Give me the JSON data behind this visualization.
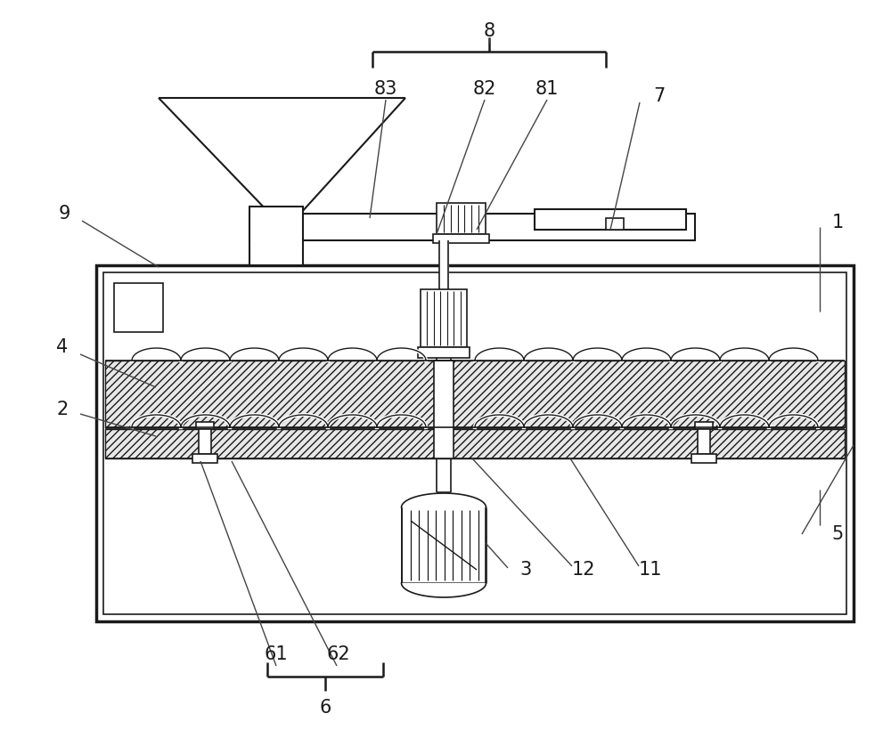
{
  "fig_width": 10.0,
  "fig_height": 8.38,
  "dpi": 100,
  "bg_color": "#ffffff",
  "line_color": "#1a1a1a"
}
